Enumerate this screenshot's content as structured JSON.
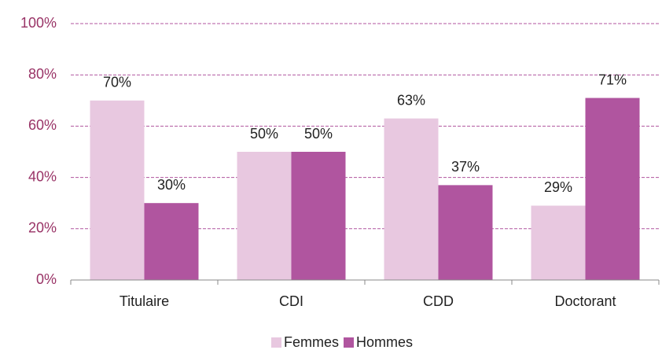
{
  "chart_data": {
    "type": "bar",
    "categories": [
      "Titulaire",
      "CDI",
      "CDD",
      "Doctorant"
    ],
    "series": [
      {
        "name": "Femmes",
        "color": "#e8c8e0",
        "values": [
          70,
          50,
          63,
          29
        ],
        "value_labels": [
          "70%",
          "50%",
          "63%",
          "29%"
        ]
      },
      {
        "name": "Hommes",
        "color": "#b0559f",
        "values": [
          30,
          50,
          37,
          71
        ],
        "value_labels": [
          "30%",
          "50%",
          "37%",
          "71%"
        ]
      }
    ],
    "ylim": [
      0,
      100
    ],
    "yticks": [
      {
        "value": 0,
        "label": "0%"
      },
      {
        "value": 20,
        "label": "20%"
      },
      {
        "value": 40,
        "label": "40%"
      },
      {
        "value": 60,
        "label": "60%"
      },
      {
        "value": 80,
        "label": "80%"
      },
      {
        "value": 100,
        "label": "100%"
      }
    ],
    "grid": true,
    "legend": "bottom"
  }
}
